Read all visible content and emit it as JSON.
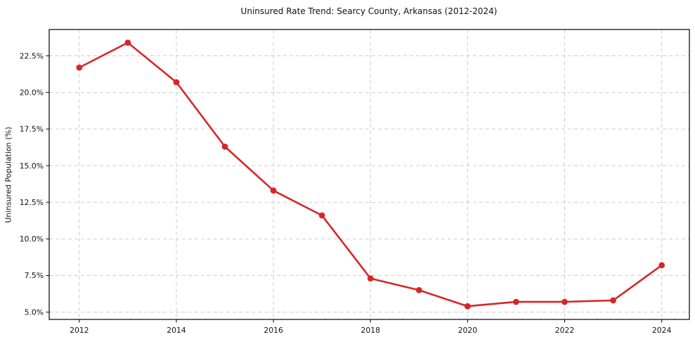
{
  "chart_data": {
    "type": "line",
    "title": "Uninsured Rate Trend: Searcy County, Arkansas (2012-2024)",
    "xlabel": "",
    "ylabel": "Uninsured Population (%)",
    "x": [
      2012,
      2013,
      2014,
      2015,
      2016,
      2017,
      2018,
      2019,
      2020,
      2021,
      2022,
      2023,
      2024
    ],
    "values": [
      21.7,
      23.4,
      20.7,
      16.3,
      13.3,
      11.6,
      7.3,
      6.5,
      5.4,
      5.7,
      5.7,
      5.8,
      8.2
    ],
    "x_tick_labels": [
      "2012",
      "2014",
      "2016",
      "2018",
      "2020",
      "2022",
      "2024"
    ],
    "x_tick_values": [
      2012,
      2014,
      2016,
      2018,
      2020,
      2022,
      2024
    ],
    "y_tick_labels": [
      "5.0%",
      "7.5%",
      "10.0%",
      "12.5%",
      "15.0%",
      "17.5%",
      "20.0%",
      "22.5%"
    ],
    "y_tick_values": [
      5.0,
      7.5,
      10.0,
      12.5,
      15.0,
      17.5,
      20.0,
      22.5
    ],
    "xlim": [
      2011.38,
      2024.57
    ],
    "ylim": [
      4.5,
      24.3
    ],
    "grid": true,
    "grid_style": "dashed",
    "legend_position": "none",
    "line_color": "#d62728",
    "grid_color": "#cccccc",
    "spine_color": "#000000",
    "marker": "circle"
  }
}
